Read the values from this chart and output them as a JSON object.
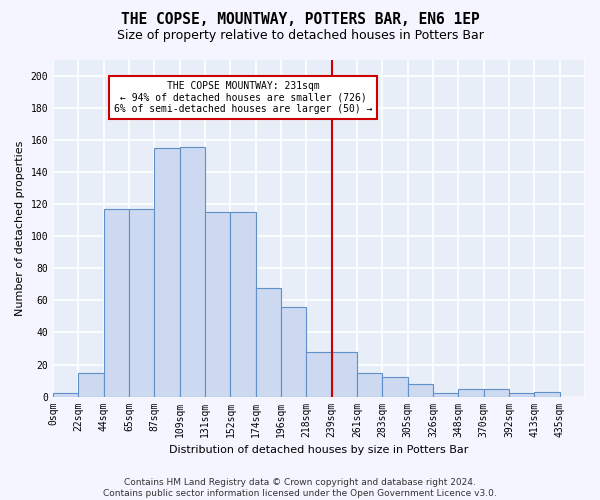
{
  "title": "THE COPSE, MOUNTWAY, POTTERS BAR, EN6 1EP",
  "subtitle": "Size of property relative to detached houses in Potters Bar",
  "xlabel": "Distribution of detached houses by size in Potters Bar",
  "ylabel": "Number of detached properties",
  "bar_labels": [
    "0sqm",
    "22sqm",
    "44sqm",
    "65sqm",
    "87sqm",
    "109sqm",
    "131sqm",
    "152sqm",
    "174sqm",
    "196sqm",
    "218sqm",
    "239sqm",
    "261sqm",
    "283sqm",
    "305sqm",
    "326sqm",
    "348sqm",
    "370sqm",
    "392sqm",
    "413sqm",
    "435sqm"
  ],
  "bar_heights": [
    2,
    15,
    117,
    117,
    155,
    156,
    115,
    115,
    68,
    56,
    28,
    28,
    15,
    12,
    8,
    2,
    5,
    5,
    2,
    3,
    0
  ],
  "n_bars": 21,
  "bar_color": "#ccd9f0",
  "bar_edge_color": "#6090c8",
  "red_line_x_label": "239sqm",
  "red_line_bar_index": 11,
  "annotation_text": "THE COPSE MOUNTWAY: 231sqm\n← 94% of detached houses are smaller (726)\n6% of semi-detached houses are larger (50) →",
  "annotation_box_color": "#ffffff",
  "annotation_box_edge": "#cc0000",
  "ylim": [
    0,
    210
  ],
  "yticks": [
    0,
    20,
    40,
    60,
    80,
    100,
    120,
    140,
    160,
    180,
    200
  ],
  "footer": "Contains HM Land Registry data © Crown copyright and database right 2024.\nContains public sector information licensed under the Open Government Licence v3.0.",
  "bg_color": "#e8eef8",
  "grid_color": "#ffffff",
  "fig_bg_color": "#f5f5ff",
  "title_fontsize": 10.5,
  "subtitle_fontsize": 9,
  "axis_label_fontsize": 8,
  "tick_fontsize": 7,
  "footer_fontsize": 6.5
}
